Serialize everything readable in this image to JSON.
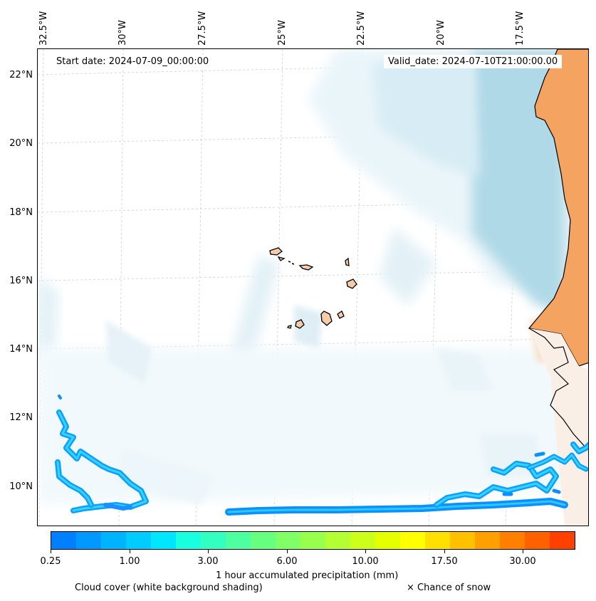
{
  "map": {
    "start_date": "Start date: 2024-07-09_00:00:00",
    "valid_date": "Valid_date: 2024-07-10T21:00:00.00",
    "lon_labels": [
      "32.5°W",
      "30°W",
      "27.5°W",
      "25°W",
      "22.5°W",
      "20°W",
      "17.5°W"
    ],
    "lat_labels": [
      "22°N",
      "20°N",
      "18°N",
      "16°N",
      "14°N",
      "12°N",
      "10°N"
    ],
    "colors": {
      "land": "#f4a460",
      "cloud": "#add8e6",
      "island": "#f6cba8"
    }
  },
  "colorbar": {
    "title": "1 hour accumulated precipitation (mm)",
    "ticks": [
      "0.25",
      "1.00",
      "3.00",
      "6.00",
      "10.00",
      "17.50",
      "30.00"
    ],
    "colors": [
      "#0080ff",
      "#0099ff",
      "#00b3ff",
      "#00ccff",
      "#00e6ff",
      "#19ffe0",
      "#33ffc0",
      "#4dffa0",
      "#66ff80",
      "#80ff66",
      "#99ff4d",
      "#b3ff33",
      "#ccff1a",
      "#e6ff00",
      "#ffff00",
      "#ffe000",
      "#ffc000",
      "#ffa000",
      "#ff8000",
      "#ff6000",
      "#ff4000"
    ]
  },
  "legend": {
    "cloud_cover": "Cloud cover (white background shading)",
    "snow": "× Chance of snow"
  }
}
